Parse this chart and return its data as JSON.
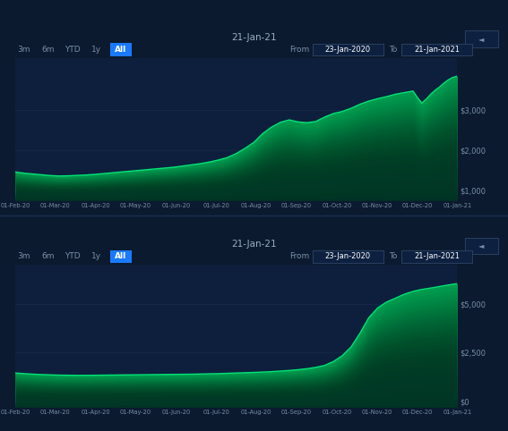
{
  "bg_color": "#0b1a2e",
  "panel_bg": "#0d1f3c",
  "grid_color": "#1a3050",
  "line_color": "#00e676",
  "text_color": "#7a8fa8",
  "title_color": "#9aafc0",
  "button_color": "#1a7aff",
  "date_box_color": "#0d2040",
  "date_box_border": "#2a4060",
  "title": "21-Jan-21",
  "date_from": "23-Jan-2020",
  "date_to": "21-Jan-2021",
  "xtick_labels": [
    "01-Feb-20",
    "01-Mar-20",
    "01-Apr-20",
    "01-May-20",
    "01-Jun-20",
    "01-Jul-20",
    "01-Aug-20",
    "01-Sep-20",
    "01-Oct-20",
    "01-Nov-20",
    "01-Dec-20",
    "01-Jan-21"
  ],
  "chart1_ytick_labels": [
    "$1,000",
    "$2,000",
    "$3,000"
  ],
  "chart1_ylim": [
    750,
    4300
  ],
  "chart1_yticks": [
    1000,
    2000,
    3000
  ],
  "chart2_ytick_labels": [
    "$0",
    "$2,500",
    "$5,000"
  ],
  "chart2_ylim": [
    -300,
    7000
  ],
  "chart2_yticks": [
    0,
    2500,
    5000
  ],
  "chart1_data_x": [
    0.0,
    0.02,
    0.04,
    0.06,
    0.08,
    0.1,
    0.12,
    0.14,
    0.16,
    0.18,
    0.2,
    0.22,
    0.24,
    0.26,
    0.28,
    0.3,
    0.32,
    0.34,
    0.36,
    0.38,
    0.4,
    0.42,
    0.44,
    0.46,
    0.48,
    0.5,
    0.52,
    0.54,
    0.56,
    0.58,
    0.6,
    0.62,
    0.64,
    0.66,
    0.68,
    0.7,
    0.72,
    0.74,
    0.76,
    0.78,
    0.8,
    0.82,
    0.84,
    0.86,
    0.88,
    0.9,
    0.91,
    0.92,
    0.93,
    0.94,
    0.95,
    0.96,
    0.97,
    0.98,
    0.99,
    1.0
  ],
  "chart1_data_y": [
    1460,
    1430,
    1410,
    1390,
    1370,
    1360,
    1365,
    1375,
    1385,
    1400,
    1420,
    1440,
    1460,
    1480,
    1500,
    1520,
    1540,
    1560,
    1580,
    1610,
    1640,
    1670,
    1710,
    1760,
    1820,
    1920,
    2050,
    2200,
    2420,
    2580,
    2700,
    2760,
    2710,
    2690,
    2720,
    2830,
    2920,
    2970,
    3050,
    3150,
    3230,
    3290,
    3340,
    3400,
    3440,
    3480,
    3320,
    3180,
    3280,
    3400,
    3500,
    3580,
    3680,
    3760,
    3820,
    3850
  ],
  "chart2_data_x": [
    0.0,
    0.02,
    0.04,
    0.06,
    0.08,
    0.1,
    0.12,
    0.14,
    0.16,
    0.18,
    0.2,
    0.22,
    0.24,
    0.26,
    0.28,
    0.3,
    0.32,
    0.34,
    0.36,
    0.38,
    0.4,
    0.42,
    0.44,
    0.46,
    0.48,
    0.5,
    0.52,
    0.54,
    0.56,
    0.58,
    0.6,
    0.62,
    0.64,
    0.66,
    0.68,
    0.7,
    0.72,
    0.74,
    0.76,
    0.78,
    0.8,
    0.82,
    0.84,
    0.86,
    0.88,
    0.9,
    0.92,
    0.94,
    0.96,
    0.98,
    1.0
  ],
  "chart2_data_y": [
    1460,
    1430,
    1400,
    1380,
    1365,
    1350,
    1345,
    1340,
    1340,
    1345,
    1350,
    1355,
    1360,
    1365,
    1370,
    1375,
    1380,
    1385,
    1390,
    1395,
    1400,
    1410,
    1420,
    1430,
    1445,
    1460,
    1475,
    1490,
    1510,
    1530,
    1560,
    1590,
    1630,
    1680,
    1750,
    1850,
    2050,
    2350,
    2800,
    3500,
    4300,
    4800,
    5100,
    5300,
    5500,
    5650,
    5750,
    5820,
    5900,
    5980,
    6050
  ],
  "filter_labels": [
    "3m",
    "6m",
    "YTD",
    "1y",
    "All"
  ],
  "active_filter": "All"
}
